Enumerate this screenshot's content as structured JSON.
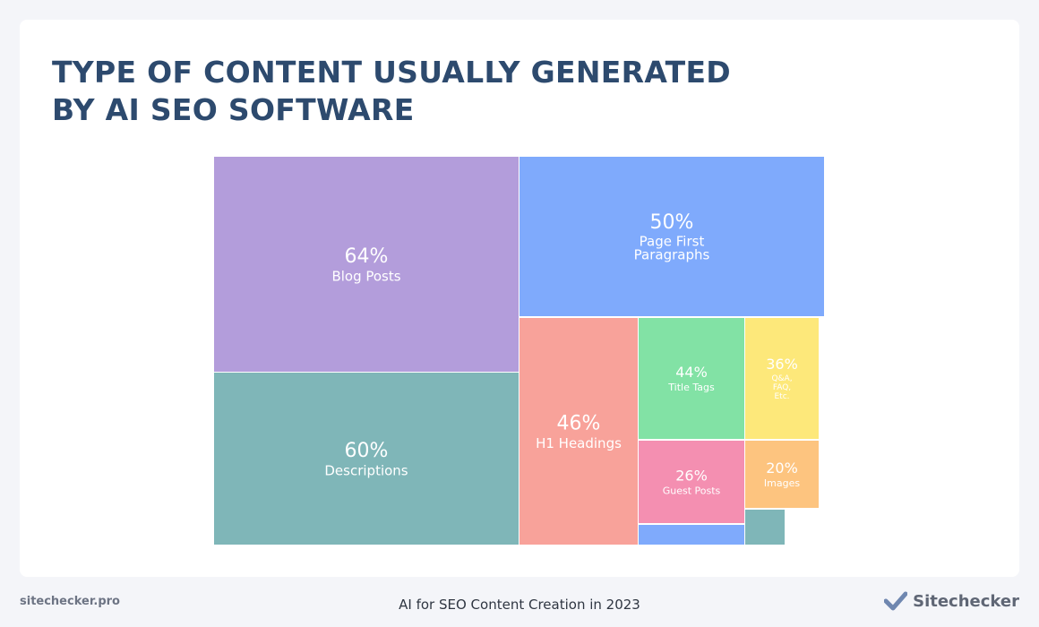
{
  "title_lines": [
    "TYPE OF CONTENT USUALLY GENERATED",
    "BY AI SEO SOFTWARE"
  ],
  "footer": {
    "site": "sitechecker.pro",
    "caption": "AI for SEO Content Creation in 2023",
    "brand": "Sitechecker"
  },
  "icons": {
    "brand": "checkmark-icon"
  },
  "colors": {
    "title": "#2d4a6e",
    "background": "#f4f5f9",
    "card": "#ffffff",
    "brand_icon": "#6f87b0"
  },
  "chart_data": {
    "type": "treemap",
    "items": [
      {
        "value": 64,
        "label": "64%",
        "name": "Blog Posts",
        "color": "#b39ddb"
      },
      {
        "value": 60,
        "label": "60%",
        "name": "Descriptions",
        "color": "#7fb6b8"
      },
      {
        "value": 50,
        "label": "50%",
        "name": "Page First Paragraphs",
        "color": "#7faafc"
      },
      {
        "value": 46,
        "label": "46%",
        "name": "H1 Headings",
        "color": "#f8a29a"
      },
      {
        "value": 44,
        "label": "44%",
        "name": "Title Tags",
        "color": "#82e2a5"
      },
      {
        "value": 36,
        "label": "36%",
        "name": "Q&A, FAQ, Etc.",
        "color": "#fde87a"
      },
      {
        "value": 26,
        "label": "26%",
        "name": "Guest Posts",
        "color": "#f48fb1"
      },
      {
        "value": 20,
        "label": "20%",
        "name": "Images",
        "color": "#fdc47f"
      },
      {
        "value": null,
        "label": "",
        "name": "",
        "color": "#7faafc"
      },
      {
        "value": null,
        "label": "",
        "name": "",
        "color": "#7fb6b8"
      }
    ]
  }
}
